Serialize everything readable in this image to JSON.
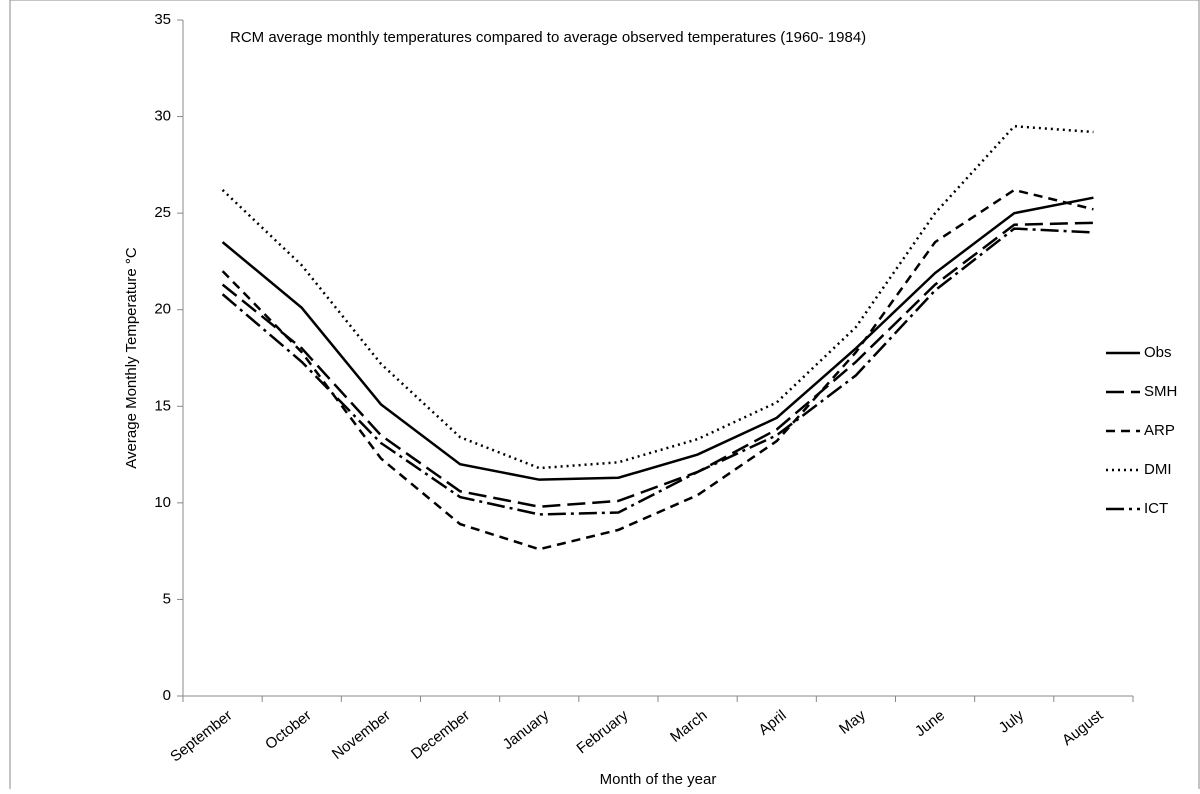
{
  "chart_data": {
    "type": "line",
    "title": "RCM average monthly temperatures compared to average observed temperatures (1960- 1984)",
    "x_label": "Month of the year",
    "y_label": "Average Monthly Temperature °C",
    "categories": [
      "September",
      "October",
      "November",
      "December",
      "January",
      "February",
      "March",
      "April",
      "May",
      "June",
      "July",
      "August"
    ],
    "ylim": [
      0,
      35
    ],
    "yticks": [
      0,
      5,
      10,
      15,
      20,
      25,
      30,
      35
    ],
    "grid": false,
    "legend": "right",
    "series": [
      {
        "name": "Obs",
        "color": "#000000",
        "dash": "none",
        "values": [
          23.5,
          20.1,
          15.1,
          12.0,
          11.2,
          11.3,
          12.5,
          14.4,
          18.0,
          21.9,
          25.0,
          25.8
        ]
      },
      {
        "name": "SMH",
        "color": "#000000",
        "dash": "18 7",
        "values": [
          21.3,
          18.0,
          13.5,
          10.6,
          9.8,
          10.1,
          11.6,
          13.8,
          17.3,
          21.3,
          24.4,
          24.5
        ]
      },
      {
        "name": "ARP",
        "color": "#000000",
        "dash": "9 6",
        "values": [
          22.0,
          17.8,
          12.3,
          8.9,
          7.6,
          8.6,
          10.4,
          13.2,
          17.8,
          23.5,
          26.2,
          25.2
        ]
      },
      {
        "name": "DMI",
        "color": "#000000",
        "dash": "2 4",
        "values": [
          26.2,
          22.3,
          17.2,
          13.4,
          11.8,
          12.1,
          13.3,
          15.2,
          19.1,
          25.0,
          29.5,
          29.2
        ]
      },
      {
        "name": "ICT",
        "color": "#000000",
        "dash": "18 5 3 5",
        "values": [
          20.8,
          17.3,
          13.1,
          10.3,
          9.4,
          9.5,
          11.6,
          13.5,
          16.6,
          21.0,
          24.2,
          24.0
        ]
      }
    ]
  }
}
